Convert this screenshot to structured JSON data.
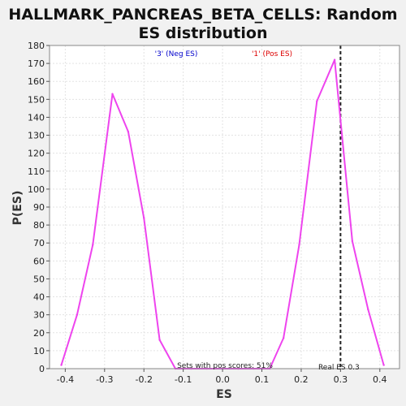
{
  "chart_data": {
    "type": "line",
    "title": "HALLMARK_PANCREAS_BETA_CELLS: Random ES distribution",
    "title_lines": [
      "HALLMARK_PANCREAS_BETA_CELLS: Random",
      "ES distribution"
    ],
    "xlabel": "ES",
    "ylabel": "P(ES)",
    "xlim": [
      -0.44,
      0.45
    ],
    "ylim": [
      0,
      180
    ],
    "x_ticks": [
      -0.4,
      -0.3,
      -0.2,
      -0.1,
      0.0,
      0.1,
      0.2,
      0.3,
      0.4
    ],
    "x_tick_labels": [
      "-0.4",
      "-0.3",
      "-0.2",
      "-0.1",
      "0.0",
      "0.1",
      "0.2",
      "0.3",
      "0.4"
    ],
    "y_ticks": [
      0,
      10,
      20,
      30,
      40,
      50,
      60,
      70,
      80,
      90,
      100,
      110,
      120,
      130,
      140,
      150,
      160,
      170,
      180
    ],
    "grid": true,
    "series": [
      {
        "color": "#ee44ee",
        "x": [
          -0.41,
          -0.37,
          -0.33,
          -0.28,
          -0.24,
          -0.2,
          -0.16,
          -0.12,
          -0.08,
          -0.04,
          0.0,
          0.04,
          0.08,
          0.12,
          0.155,
          0.195,
          0.24,
          0.285,
          0.33,
          0.37,
          0.41
        ],
        "y": [
          2,
          30,
          69,
          153,
          132,
          84,
          16,
          0,
          0,
          0,
          0,
          0,
          0,
          0,
          17,
          69,
          149,
          172,
          71,
          33,
          2
        ]
      }
    ],
    "legend": [
      {
        "label": "'3' (Neg ES)",
        "color": "#0000cc"
      },
      {
        "label": "'1' (Pos ES)",
        "color": "#dd0000"
      }
    ],
    "legend_placement": "top-center",
    "vline": {
      "x": 0.3,
      "label": "Real ES 0.3",
      "color": "#222222"
    },
    "annotation": "Sets with pos scores: 51%"
  }
}
